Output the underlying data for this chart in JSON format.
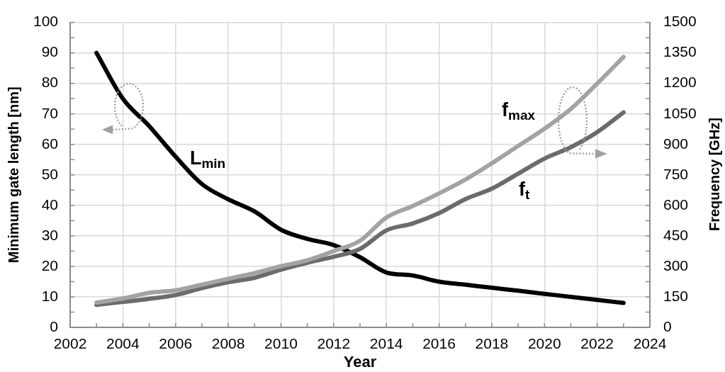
{
  "chart_data": {
    "type": "line",
    "xlabel": "Year",
    "ylabel": "Minimum gate length [nm]",
    "y2label": "Frequency [GHz]",
    "x": [
      2003,
      2004,
      2005,
      2006,
      2007,
      2008,
      2009,
      2010,
      2011,
      2012,
      2013,
      2014,
      2015,
      2016,
      2017,
      2018,
      2019,
      2020,
      2021,
      2022,
      2023
    ],
    "series": [
      {
        "name": "L$_{min}$",
        "color": "#000000",
        "values": [
          90,
          75,
          66,
          56,
          47,
          42,
          38,
          32,
          29,
          27,
          23,
          18,
          17,
          15,
          14,
          13,
          12,
          11,
          10,
          9,
          8
        ]
      },
      {
        "name": "f$_{t}$",
        "color": "#6b6b6b",
        "axis": "y2",
        "values": [
          111,
          125,
          140,
          159,
          193,
          222,
          244,
          284,
          318,
          347,
          386,
          477,
          511,
          562,
          631,
          682,
          756,
          830,
          886,
          960,
          1057
        ]
      },
      {
        "name": "f$_{max}$",
        "color": "#a3a3a3",
        "axis": "y2",
        "values": [
          122,
          142,
          170,
          182,
          210,
          239,
          267,
          301,
          330,
          375,
          426,
          540,
          597,
          659,
          727,
          807,
          892,
          977,
          1074,
          1199,
          1330
        ]
      }
    ],
    "xlim": [
      2002,
      2024
    ],
    "xticks": [
      2002,
      {
        "value": 2003,
        "label": null
      },
      2004,
      {
        "value": 2005,
        "label": null
      },
      2006,
      {
        "value": 2007,
        "label": null
      },
      2008,
      {
        "value": 2009,
        "label": null
      },
      2010,
      {
        "value": 2011,
        "label": null
      },
      2012,
      {
        "value": 2013,
        "label": null
      },
      2014,
      {
        "value": 2015,
        "label": null
      },
      2016,
      {
        "value": 2017,
        "label": null
      },
      2018,
      {
        "value": 2019,
        "label": null
      },
      2020,
      {
        "value": 2021,
        "label": null
      },
      2022,
      {
        "value": 2023,
        "label": null
      },
      2024
    ],
    "ylim": [
      0,
      100
    ],
    "yticks": [
      0,
      {
        "value": 5,
        "label": null
      },
      10,
      {
        "value": 15,
        "label": null
      },
      20,
      {
        "value": 25,
        "label": null
      },
      30,
      {
        "value": 35,
        "label": null
      },
      40,
      {
        "value": 45,
        "label": null
      },
      50,
      {
        "value": 55,
        "label": null
      },
      60,
      {
        "value": 65,
        "label": null
      },
      70,
      {
        "value": 75,
        "label": null
      },
      80,
      {
        "value": 85,
        "label": null
      },
      90,
      {
        "value": 95,
        "label": null
      },
      100
    ],
    "y2lim": [
      0,
      1500
    ],
    "y2ticks": [
      0,
      {
        "value": 75,
        "label": null
      },
      150,
      {
        "value": 225,
        "label": null
      },
      300,
      {
        "value": 375,
        "label": null
      },
      450,
      {
        "value": 525,
        "label": null
      },
      600,
      {
        "value": 675,
        "label": null
      },
      750,
      {
        "value": 825,
        "label": null
      },
      900,
      {
        "value": 975,
        "label": null
      },
      1050,
      {
        "value": 1125,
        "label": null
      },
      1200,
      {
        "value": 1275,
        "label": null
      },
      1350,
      {
        "value": 1425,
        "label": null
      },
      1500
    ],
    "grid": true,
    "legend": false,
    "marker": "none",
    "line_style": "solid"
  }
}
